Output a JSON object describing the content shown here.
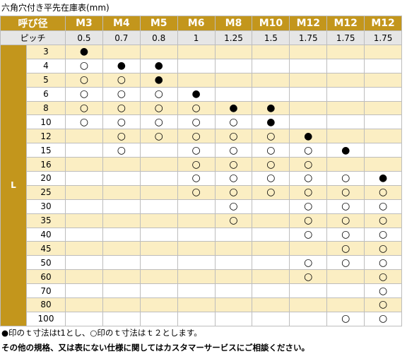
{
  "title": "六角穴付き平先在庫表(mm)",
  "table": {
    "header": [
      "呼び径",
      "M3",
      "M4",
      "M5",
      "M6",
      "M8",
      "M10",
      "M12",
      "M12",
      "M12"
    ],
    "pitch": [
      "ピッチ",
      "0.5",
      "0.7",
      "0.8",
      "1",
      "1.25",
      "1.5",
      "1.75",
      "1.75",
      "1.75"
    ],
    "l_label": "L",
    "rows": [
      {
        "length": "3",
        "cells": [
          "●",
          null,
          null,
          null,
          null,
          null,
          null,
          null,
          null
        ]
      },
      {
        "length": "4",
        "cells": [
          "○",
          "●",
          "●",
          null,
          null,
          null,
          null,
          null,
          null
        ]
      },
      {
        "length": "5",
        "cells": [
          "○",
          "○",
          "●",
          null,
          null,
          null,
          null,
          null,
          null
        ]
      },
      {
        "length": "6",
        "cells": [
          "○",
          "○",
          "○",
          "●",
          null,
          null,
          null,
          null,
          null
        ]
      },
      {
        "length": "8",
        "cells": [
          "○",
          "○",
          "○",
          "○",
          "●",
          "●",
          null,
          null,
          null
        ]
      },
      {
        "length": "10",
        "cells": [
          "○",
          "○",
          "○",
          "○",
          "○",
          "●",
          null,
          null,
          null
        ]
      },
      {
        "length": "12",
        "cells": [
          null,
          "○",
          "○",
          "○",
          "○",
          "○",
          "●",
          null,
          null
        ]
      },
      {
        "length": "15",
        "cells": [
          null,
          "○",
          null,
          "○",
          "○",
          "○",
          "○",
          "●",
          null
        ]
      },
      {
        "length": "16",
        "cells": [
          null,
          null,
          null,
          "○",
          "○",
          "○",
          "○",
          null,
          null
        ]
      },
      {
        "length": "20",
        "cells": [
          null,
          null,
          null,
          "○",
          "○",
          "○",
          "○",
          "○",
          "●"
        ]
      },
      {
        "length": "25",
        "cells": [
          null,
          null,
          null,
          "○",
          "○",
          "○",
          "○",
          "○",
          "○"
        ]
      },
      {
        "length": "30",
        "cells": [
          null,
          null,
          null,
          null,
          "○",
          null,
          "○",
          "○",
          "○"
        ]
      },
      {
        "length": "35",
        "cells": [
          null,
          null,
          null,
          null,
          "○",
          null,
          "○",
          "○",
          "○"
        ]
      },
      {
        "length": "40",
        "cells": [
          null,
          null,
          null,
          null,
          null,
          null,
          "○",
          "○",
          "○"
        ]
      },
      {
        "length": "45",
        "cells": [
          null,
          null,
          null,
          null,
          null,
          null,
          null,
          "○",
          "○"
        ]
      },
      {
        "length": "50",
        "cells": [
          null,
          null,
          null,
          null,
          null,
          null,
          "○",
          "○",
          "○"
        ]
      },
      {
        "length": "60",
        "cells": [
          null,
          null,
          null,
          null,
          null,
          null,
          "○",
          null,
          "○"
        ]
      },
      {
        "length": "70",
        "cells": [
          null,
          null,
          null,
          null,
          null,
          null,
          null,
          null,
          "○"
        ]
      },
      {
        "length": "80",
        "cells": [
          null,
          null,
          null,
          null,
          null,
          null,
          null,
          null,
          "○"
        ]
      },
      {
        "length": "100",
        "cells": [
          null,
          null,
          null,
          null,
          null,
          null,
          null,
          "○",
          "○"
        ]
      }
    ]
  },
  "notes": [
    "●印のｔ寸法はt1とし、○印のｔ寸法はｔ２とします。",
    "その他の規格、又は表にない仕様に関してはカスタマーサービスにご相談ください。"
  ]
}
